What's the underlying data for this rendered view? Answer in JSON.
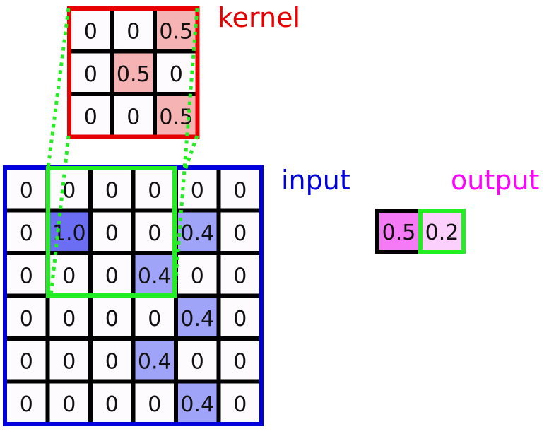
{
  "labels": {
    "kernel": "kernel",
    "input": "input",
    "output": "output"
  },
  "colors": {
    "kernel": "#e60000",
    "input": "#0000dd",
    "output": "#ff00ff",
    "window": "#22ee22",
    "zero_cell": "#fdfbfd",
    "kernel_highlight": "#f5b3b3",
    "input_strong": "#6b6ef2",
    "input_weak": "#a0a4f9",
    "output_first": "#f57af5",
    "output_second": "#fcd0fc"
  },
  "kernel": [
    [
      "0",
      "0",
      "0.5"
    ],
    [
      "0",
      "0.5",
      "0"
    ],
    [
      "0",
      "0",
      "0.5"
    ]
  ],
  "input": [
    [
      "0",
      "0",
      "0",
      "0",
      "0",
      "0"
    ],
    [
      "0",
      "1.0",
      "0",
      "0",
      "0.4",
      "0"
    ],
    [
      "0",
      "0",
      "0",
      "0.4",
      "0",
      "0"
    ],
    [
      "0",
      "0",
      "0",
      "0",
      "0.4",
      "0"
    ],
    [
      "0",
      "0",
      "0",
      "0.4",
      "0",
      "0"
    ],
    [
      "0",
      "0",
      "0",
      "0",
      "0.4",
      "0"
    ]
  ],
  "output": [
    "0.5",
    "0.2"
  ]
}
